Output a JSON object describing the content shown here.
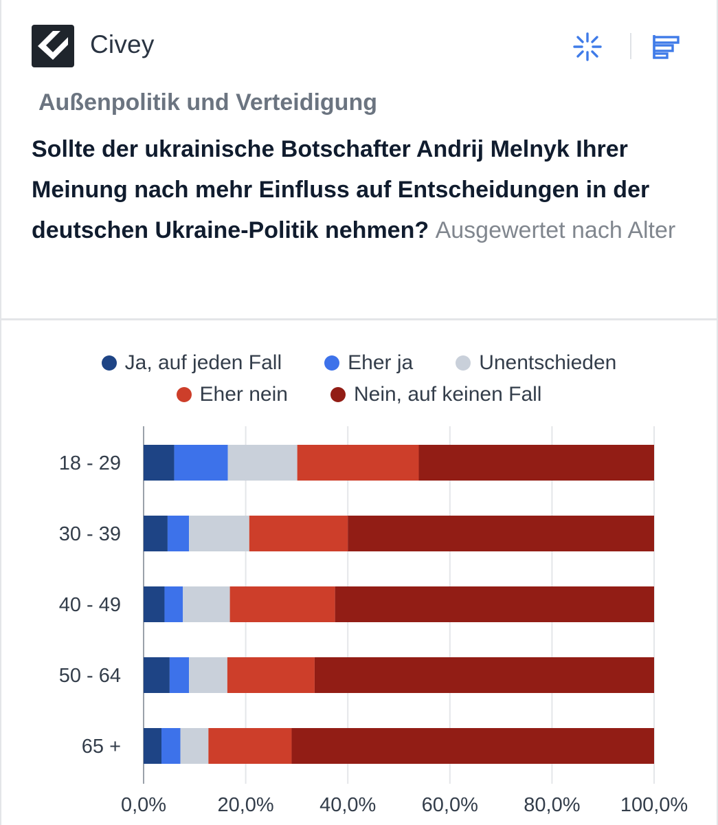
{
  "brand": {
    "name": "Civey",
    "logo_icon": "civey-logo-icon",
    "toolbar_icons": [
      "sparkle-icon",
      "horizontal-bars-icon"
    ],
    "accent_color": "#3f7be8"
  },
  "header": {
    "category": "Außenpolitik und Verteidigung",
    "question": "Sollte der ukrainische Botschafter Andrij Melnyk Ihrer Meinung nach mehr Einfluss auf Entscheidungen in der deutschen Ukraine-Politik nehmen?",
    "subtitle": "Ausgewertet nach Alter"
  },
  "chart_data": {
    "type": "bar",
    "orientation": "horizontal",
    "stacked": true,
    "categories": [
      "18 - 29",
      "30 - 39",
      "40 - 49",
      "50 - 64",
      "65 +"
    ],
    "series": [
      {
        "name": "Ja, auf jeden Fall",
        "color": "#1e4485",
        "values": [
          6.0,
          4.7,
          4.1,
          5.1,
          3.5
        ]
      },
      {
        "name": "Eher ja",
        "color": "#3d72ea",
        "values": [
          10.5,
          4.2,
          3.6,
          3.8,
          3.7
        ]
      },
      {
        "name": "Unentschieden",
        "color": "#c9d0da",
        "values": [
          13.6,
          11.8,
          9.2,
          7.5,
          5.5
        ]
      },
      {
        "name": "Eher nein",
        "color": "#cd3e2a",
        "values": [
          23.8,
          19.3,
          20.6,
          17.1,
          16.3
        ]
      },
      {
        "name": "Nein, auf keinen Fall",
        "color": "#921d15",
        "values": [
          46.1,
          60.0,
          62.5,
          66.5,
          71.0
        ]
      }
    ],
    "xlim": [
      0,
      100
    ],
    "xticks": [
      "0,0%",
      "20,0%",
      "40,0%",
      "60,0%",
      "80,0%",
      "100,0%"
    ],
    "grid": true,
    "legend_position": "top"
  }
}
